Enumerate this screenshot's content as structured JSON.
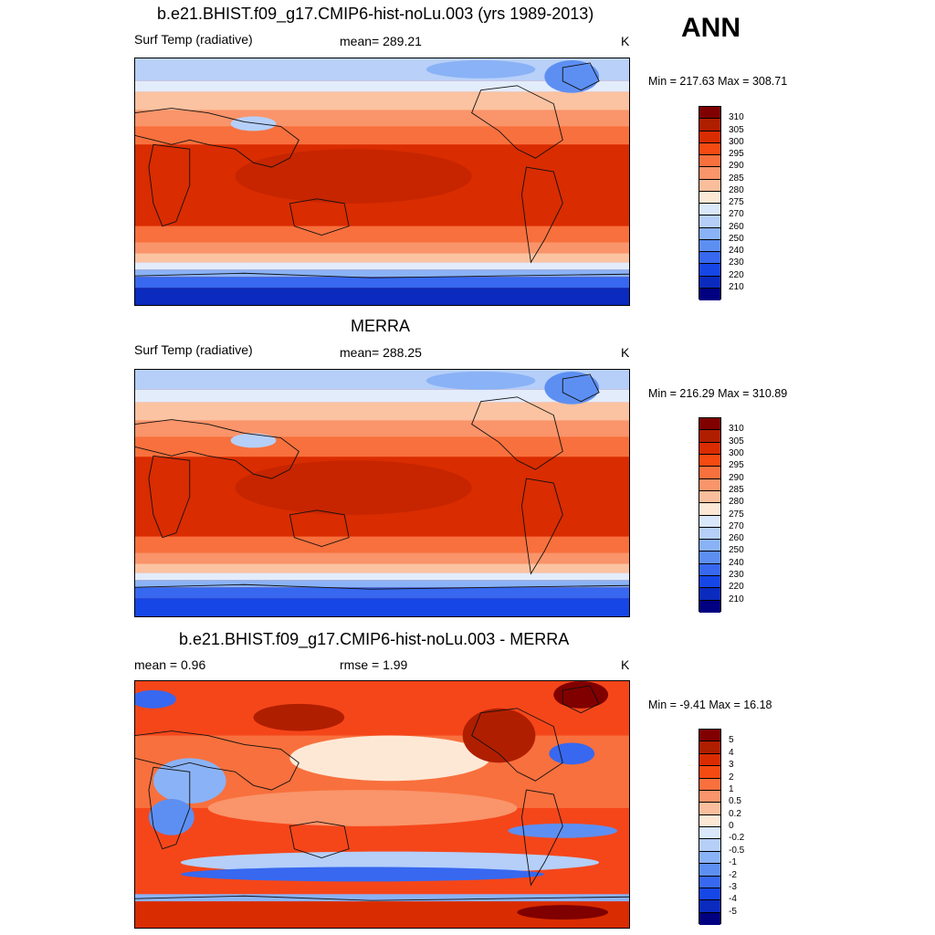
{
  "season": "ANN",
  "panels": [
    {
      "title": "b.e21.BHIST.f09_g17.CMIP6-hist-noLu.003 (yrs 1989-2013)",
      "left_label": "Surf Temp (radiative)",
      "center_label": "mean= 289.21",
      "units": "K",
      "minmax": "Min = 217.63 Max = 308.71",
      "colorbar": {
        "labels": [
          "310",
          "305",
          "300",
          "295",
          "290",
          "285",
          "280",
          "275",
          "270",
          "260",
          "250",
          "240",
          "230",
          "220",
          "210"
        ],
        "colors": [
          "#800000",
          "#b01e00",
          "#d92c00",
          "#f54a12",
          "#f8703d",
          "#fa946a",
          "#fbbe9c",
          "#fde8d6",
          "#d9e8fb",
          "#b5cff9",
          "#8ab2f6",
          "#5d8ff3",
          "#3768ef",
          "#1646e6",
          "#0a2bbd",
          "#000080"
        ]
      }
    },
    {
      "title": "MERRA",
      "left_label": "Surf Temp (radiative)",
      "center_label": "mean= 288.25",
      "units": "K",
      "minmax": "Min = 216.29 Max = 310.89",
      "colorbar": {
        "labels": [
          "310",
          "305",
          "300",
          "295",
          "290",
          "285",
          "280",
          "275",
          "270",
          "260",
          "250",
          "240",
          "230",
          "220",
          "210"
        ],
        "colors": [
          "#800000",
          "#b01e00",
          "#d92c00",
          "#f54a12",
          "#f8703d",
          "#fa946a",
          "#fbbe9c",
          "#fde8d6",
          "#d9e8fb",
          "#b5cff9",
          "#8ab2f6",
          "#5d8ff3",
          "#3768ef",
          "#1646e6",
          "#0a2bbd",
          "#000080"
        ]
      }
    },
    {
      "title": "b.e21.BHIST.f09_g17.CMIP6-hist-noLu.003 - MERRA",
      "left_label": "mean =   0.96",
      "center_label": "rmse =   1.99",
      "units": "K",
      "minmax": "Min =  -9.41 Max =  16.18",
      "colorbar": {
        "labels": [
          "5",
          "4",
          "3",
          "2",
          "1",
          "0.5",
          "0.2",
          "0",
          "-0.2",
          "-0.5",
          "-1",
          "-2",
          "-3",
          "-4",
          "-5"
        ],
        "colors": [
          "#800000",
          "#b01e00",
          "#d92c00",
          "#f54a12",
          "#f8703d",
          "#fa946a",
          "#fbbe9c",
          "#fde8d6",
          "#d9e8fb",
          "#b5cff9",
          "#8ab2f6",
          "#5d8ff3",
          "#3768ef",
          "#1646e6",
          "#0a2bbd",
          "#000080"
        ]
      }
    }
  ]
}
